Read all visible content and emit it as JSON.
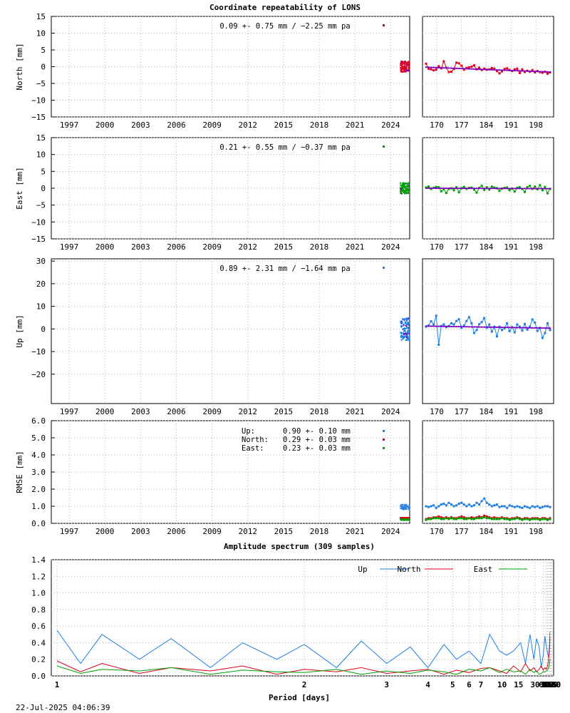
{
  "title": "Coordinate repeatability of LONS",
  "footer_timestamp": "22-Jul-2025 04:06:39",
  "colors": {
    "north": "#e0001a",
    "east": "#00a000",
    "up": "#1f7fe0",
    "model": "#8000c0"
  },
  "chart_data": [
    {
      "type": "scatter",
      "id": "north",
      "ylabel": "North [mm]",
      "ylim": [
        -15,
        15
      ],
      "yticks": [
        15,
        10,
        5,
        0,
        -5,
        -10,
        -15
      ],
      "ytick_labels": [
        "15",
        "10",
        "5",
        "0",
        "−5",
        "−10",
        "−15"
      ],
      "xlim": [
        1995.5,
        2025.6
      ],
      "xticks": [
        "1997",
        "2000",
        "2003",
        "2006",
        "2009",
        "2012",
        "2015",
        "2018",
        "2021",
        "2024"
      ],
      "zoom_xlim": [
        166,
        203
      ],
      "zoom_xticks": [
        "170",
        "177",
        "184",
        "191",
        "198"
      ],
      "stat_text": "0.09 +- 0.75 mm / −2.25 mm pa",
      "series_color": "north",
      "zoom_values": [
        0.9,
        -0.6,
        -0.8,
        -1.1,
        -0.9,
        0.1,
        -0.5,
        1.6,
        -0.3,
        -1.6,
        -1.5,
        -0.7,
        1.2,
        1.0,
        0.3,
        -0.9,
        -0.4,
        -0.2,
        0.0,
        0.4,
        -0.8,
        -0.3,
        -1.0,
        -0.6,
        -0.9,
        -0.8,
        -0.4,
        -0.6,
        -1.3,
        -2.0,
        -1.4,
        -0.7,
        -0.5,
        -1.0,
        -1.3,
        -0.8,
        -0.6,
        -1.9,
        -0.8,
        -1.6,
        -1.2,
        -1.5,
        -1.0,
        -1.7,
        -1.3,
        -1.6,
        -1.8,
        -1.5,
        -2.1,
        -1.7
      ]
    },
    {
      "type": "scatter",
      "id": "east",
      "ylabel": "East [mm]",
      "ylim": [
        -15,
        15
      ],
      "yticks": [
        15,
        10,
        5,
        0,
        -5,
        -10,
        -15
      ],
      "ytick_labels": [
        "15",
        "10",
        "5",
        "0",
        "−5",
        "−10",
        "−15"
      ],
      "xlim": [
        1995.5,
        2025.6
      ],
      "xticks": [
        "1997",
        "2000",
        "2003",
        "2006",
        "2009",
        "2012",
        "2015",
        "2018",
        "2021",
        "2024"
      ],
      "zoom_xlim": [
        166,
        203
      ],
      "zoom_xticks": [
        "170",
        "177",
        "184",
        "191",
        "198"
      ],
      "stat_text": "0.21 +- 0.55 mm / −0.37 mm pa",
      "series_color": "east",
      "zoom_values": [
        0.2,
        0.5,
        -0.2,
        0.1,
        0.4,
        0.3,
        -0.9,
        -0.3,
        -1.4,
        -0.2,
        0.0,
        -0.6,
        0.3,
        -1.2,
        0.0,
        0.4,
        -0.2,
        0.1,
        0.2,
        -0.4,
        -1.3,
        0.1,
        0.7,
        -0.5,
        0.3,
        -0.4,
        0.5,
        0.2,
        0.0,
        -0.8,
        -0.1,
        0.1,
        0.2,
        -0.6,
        -0.1,
        -1.0,
        0.1,
        0.3,
        -0.2,
        -1.1,
        0.3,
        0.7,
        -0.2,
        0.5,
        -0.3,
        0.9,
        -0.6,
        0.4,
        -1.5,
        -0.2
      ]
    },
    {
      "type": "scatter",
      "id": "up",
      "ylabel": "Up [mm]",
      "ylim": [
        -33,
        31
      ],
      "yticks": [
        30,
        20,
        10,
        0,
        -10,
        -20
      ],
      "ytick_labels": [
        "30",
        "20",
        "10",
        "0",
        "−10",
        "−20"
      ],
      "xlim": [
        1995.5,
        2025.6
      ],
      "xticks": [
        "1997",
        "2000",
        "2003",
        "2006",
        "2009",
        "2012",
        "2015",
        "2018",
        "2021",
        "2024"
      ],
      "zoom_xlim": [
        166,
        203
      ],
      "zoom_xticks": [
        "170",
        "177",
        "184",
        "191",
        "198"
      ],
      "stat_text": "0.89 +- 2.31 mm / −1.64 mm pa",
      "series_color": "up",
      "zoom_values": [
        1.0,
        1.5,
        3.4,
        2.0,
        5.8,
        -7.0,
        1.3,
        2.0,
        0.8,
        1.3,
        2.5,
        2.0,
        3.5,
        4.3,
        0.5,
        1.5,
        3.5,
        5.2,
        2.5,
        -1.8,
        -0.5,
        2.1,
        3.0,
        4.8,
        0.5,
        2.0,
        -1.2,
        1.0,
        -3.3,
        1.0,
        -0.5,
        0.3,
        2.5,
        -1.0,
        0.8,
        -1.5,
        2.0,
        1.0,
        -0.7,
        2.2,
        -0.3,
        1.0,
        4.2,
        2.8,
        -0.9,
        0.5,
        -4.0,
        -1.8,
        2.5,
        -0.5
      ]
    },
    {
      "type": "scatter",
      "id": "rmse",
      "ylabel": "RMSE [mm]",
      "ylim": [
        0,
        6
      ],
      "yticks": [
        6,
        5,
        4,
        3,
        2,
        1,
        0
      ],
      "ytick_labels": [
        "6.0",
        "5.0",
        "4.0",
        "3.0",
        "2.0",
        "1.0",
        "0.0"
      ],
      "xlim": [
        1995.5,
        2025.6
      ],
      "xticks": [
        "1997",
        "2000",
        "2003",
        "2006",
        "2009",
        "2012",
        "2015",
        "2018",
        "2021",
        "2024"
      ],
      "zoom_xlim": [
        166,
        203
      ],
      "zoom_xticks": [
        "170",
        "177",
        "184",
        "191",
        "198"
      ],
      "legend": [
        {
          "label": "Up:",
          "value": "0.90 +- 0.10 mm",
          "color": "up"
        },
        {
          "label": "North:",
          "value": "0.29 +- 0.03 mm",
          "color": "north"
        },
        {
          "label": "East:",
          "value": "0.23 +- 0.03 mm",
          "color": "east"
        }
      ],
      "zoom_up": [
        1.0,
        0.95,
        1.0,
        1.05,
        0.9,
        1.0,
        1.1,
        1.15,
        1.05,
        1.2,
        1.1,
        1.0,
        1.05,
        1.15,
        1.2,
        1.1,
        1.0,
        1.1,
        1.0,
        1.05,
        1.2,
        1.1,
        1.3,
        1.45,
        1.2,
        1.1,
        1.0,
        1.05,
        1.1,
        0.95,
        1.0,
        1.0,
        0.9,
        1.05,
        1.0,
        0.95,
        1.0,
        0.95,
        0.9,
        1.0,
        0.95,
        0.9,
        1.0,
        0.95,
        1.0,
        0.9,
        0.95,
        1.0,
        1.0,
        0.95
      ],
      "zoom_north": [
        0.25,
        0.3,
        0.3,
        0.35,
        0.35,
        0.4,
        0.35,
        0.3,
        0.35,
        0.3,
        0.35,
        0.3,
        0.3,
        0.35,
        0.4,
        0.35,
        0.3,
        0.3,
        0.35,
        0.3,
        0.35,
        0.4,
        0.35,
        0.45,
        0.4,
        0.35,
        0.3,
        0.35,
        0.3,
        0.3,
        0.35,
        0.3,
        0.3,
        0.25,
        0.3,
        0.3,
        0.35,
        0.3,
        0.25,
        0.3,
        0.3,
        0.25,
        0.3,
        0.3,
        0.3,
        0.25,
        0.3,
        0.3,
        0.25,
        0.3
      ],
      "zoom_east": [
        0.2,
        0.25,
        0.25,
        0.3,
        0.3,
        0.3,
        0.25,
        0.25,
        0.3,
        0.25,
        0.3,
        0.25,
        0.25,
        0.3,
        0.3,
        0.25,
        0.25,
        0.3,
        0.25,
        0.25,
        0.3,
        0.3,
        0.3,
        0.35,
        0.3,
        0.3,
        0.25,
        0.25,
        0.25,
        0.25,
        0.3,
        0.25,
        0.25,
        0.2,
        0.25,
        0.25,
        0.3,
        0.25,
        0.2,
        0.25,
        0.25,
        0.2,
        0.25,
        0.25,
        0.25,
        0.2,
        0.25,
        0.25,
        0.2,
        0.25
      ]
    },
    {
      "type": "line",
      "id": "spectrum",
      "title": "Amplitude spectrum (309 samples)",
      "xlabel": "Period [days]",
      "x_scale": "reciprocal",
      "xticks": [
        1,
        2,
        3,
        4,
        5,
        6,
        7,
        10,
        15,
        30,
        61,
        91,
        122,
        183,
        365,
        730,
        2190,
        4380,
        8760
      ],
      "ylim": [
        0,
        1.4
      ],
      "yticks": [
        1.4,
        1.2,
        1.0,
        0.8,
        0.6,
        0.4,
        0.2,
        0.0
      ],
      "ytick_labels": [
        "1.4",
        "1.2",
        "1.0",
        "0.8",
        "0.6",
        "0.4",
        "0.2",
        "0.0"
      ],
      "legend_position": "top-right",
      "series": [
        {
          "name": "Up",
          "color": "up",
          "x": [
            1.0,
            1.05,
            1.1,
            1.2,
            1.3,
            1.45,
            1.6,
            1.8,
            2.0,
            2.3,
            2.6,
            3.0,
            3.5,
            4.0,
            4.6,
            5.2,
            6.0,
            7.0,
            8.0,
            9.5,
            11,
            13,
            16,
            19,
            23,
            28,
            33,
            40,
            48,
            60,
            75,
            95,
            125,
            170,
            250,
            309
          ],
          "y": [
            0.55,
            0.15,
            0.5,
            0.2,
            0.45,
            0.1,
            0.4,
            0.2,
            0.38,
            0.1,
            0.42,
            0.15,
            0.35,
            0.1,
            0.38,
            0.2,
            0.3,
            0.15,
            0.5,
            0.3,
            0.25,
            0.3,
            0.4,
            0.15,
            0.5,
            0.2,
            0.45,
            0.35,
            0.1,
            0.25,
            0.48,
            0.35,
            0.28,
            0.22,
            0.38,
            0.53
          ]
        },
        {
          "name": "North",
          "color": "north",
          "x": [
            1.0,
            1.05,
            1.1,
            1.2,
            1.3,
            1.45,
            1.6,
            1.8,
            2.0,
            2.3,
            2.6,
            3.0,
            3.5,
            4.0,
            4.6,
            5.2,
            6.0,
            7.0,
            8.0,
            9.5,
            11,
            13,
            16,
            19,
            23,
            28,
            33,
            40,
            48,
            60,
            75,
            95,
            125,
            170,
            250,
            309
          ],
          "y": [
            0.18,
            0.05,
            0.15,
            0.03,
            0.1,
            0.06,
            0.12,
            0.02,
            0.08,
            0.05,
            0.1,
            0.03,
            0.06,
            0.08,
            0.02,
            0.07,
            0.04,
            0.09,
            0.1,
            0.06,
            0.03,
            0.12,
            0.05,
            0.15,
            0.06,
            0.1,
            0.05,
            0.08,
            0.12,
            0.07,
            0.1,
            0.08,
            0.12,
            0.2,
            0.33,
            0.46
          ]
        },
        {
          "name": "East",
          "color": "east",
          "x": [
            1.0,
            1.05,
            1.1,
            1.2,
            1.3,
            1.45,
            1.6,
            1.8,
            2.0,
            2.3,
            2.6,
            3.0,
            3.5,
            4.0,
            4.6,
            5.2,
            6.0,
            7.0,
            8.0,
            9.5,
            11,
            13,
            16,
            19,
            23,
            28,
            33,
            40,
            48,
            60,
            75,
            95,
            125,
            170,
            250,
            309
          ],
          "y": [
            0.12,
            0.03,
            0.08,
            0.06,
            0.1,
            0.02,
            0.07,
            0.05,
            0.04,
            0.08,
            0.02,
            0.06,
            0.03,
            0.07,
            0.05,
            0.02,
            0.08,
            0.06,
            0.1,
            0.04,
            0.08,
            0.05,
            0.06,
            0.02,
            0.08,
            0.04,
            0.06,
            0.02,
            0.03,
            0.05,
            0.05,
            0.06,
            0.07,
            0.1,
            0.15,
            0.2
          ]
        }
      ]
    }
  ]
}
